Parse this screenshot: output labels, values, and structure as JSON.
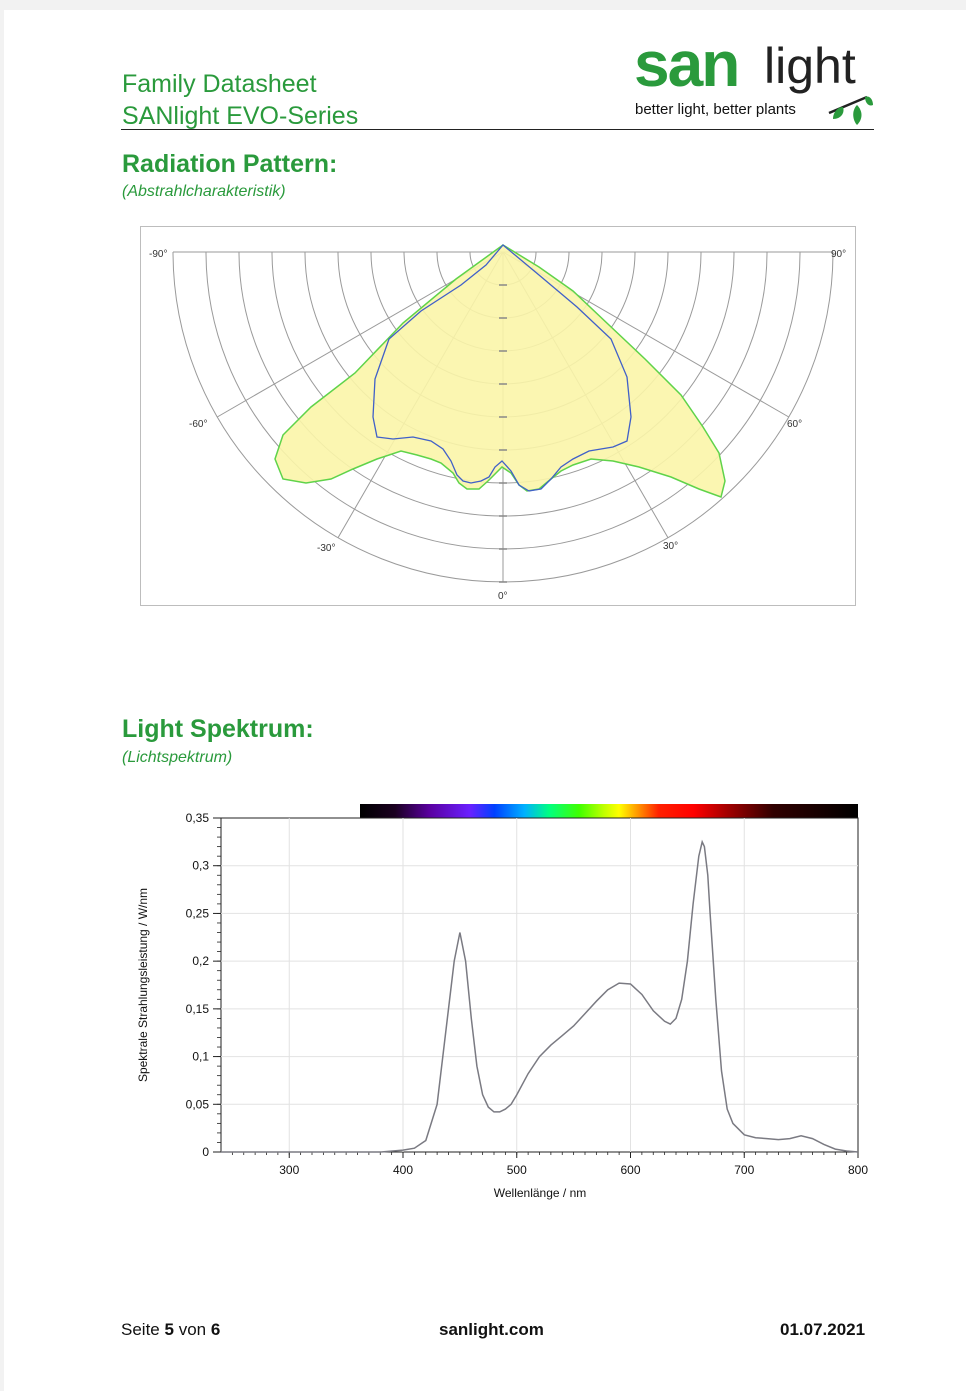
{
  "header": {
    "title_line1": "Family Datasheet",
    "title_line2": "SANlight EVO-Series",
    "logo_san": "san",
    "logo_light": "light",
    "logo_tagline": "better light, better plants"
  },
  "radiation": {
    "title": "Radiation Pattern:",
    "subtitle": "(Abstrahlcharakteristik)",
    "angle_labels": [
      "-90°",
      "90°",
      "-60°",
      "60°",
      "-30°",
      "30°",
      "0°"
    ],
    "colors": {
      "grid": "#9a9a9a",
      "fill": "#fbf5a8",
      "outline_green": "#5fd34a",
      "outline_blue": "#4060c8"
    }
  },
  "spectrum": {
    "title": "Light Spektrum:",
    "subtitle": "(Lichtspektrum)",
    "chart_data": {
      "type": "line",
      "xlabel": "Wellenlänge / nm",
      "ylabel": "Spektrale Strahlungsleistung / W/nm",
      "xlim": [
        240,
        800
      ],
      "ylim": [
        0,
        0.35
      ],
      "x_ticks": [
        "300",
        "400",
        "500",
        "600",
        "700",
        "800"
      ],
      "y_ticks": [
        "0",
        "0,05",
        "0,1",
        "0,15",
        "0,2",
        "0,25",
        "0,3",
        "0,35"
      ],
      "grid": true,
      "series": [
        {
          "x": [
            240,
            380,
            400,
            410,
            420,
            430,
            440,
            445,
            450,
            455,
            460,
            465,
            470,
            475,
            480,
            485,
            490,
            495,
            500,
            510,
            520,
            530,
            540,
            550,
            560,
            570,
            580,
            590,
            600,
            610,
            620,
            630,
            635,
            640,
            645,
            650,
            655,
            660,
            663,
            665,
            668,
            670,
            675,
            680,
            685,
            690,
            700,
            710,
            720,
            730,
            740,
            750,
            760,
            770,
            780,
            790,
            800
          ],
          "y": [
            0,
            0,
            0.002,
            0.004,
            0.012,
            0.05,
            0.15,
            0.2,
            0.23,
            0.2,
            0.14,
            0.09,
            0.06,
            0.047,
            0.042,
            0.042,
            0.045,
            0.05,
            0.06,
            0.082,
            0.1,
            0.112,
            0.122,
            0.132,
            0.145,
            0.158,
            0.17,
            0.177,
            0.176,
            0.165,
            0.148,
            0.137,
            0.134,
            0.14,
            0.16,
            0.2,
            0.26,
            0.31,
            0.325,
            0.32,
            0.29,
            0.25,
            0.16,
            0.085,
            0.045,
            0.03,
            0.018,
            0.015,
            0.014,
            0.013,
            0.014,
            0.017,
            0.014,
            0.008,
            0.003,
            0.001,
            0
          ]
        }
      ]
    }
  },
  "footer": {
    "page_prefix": "Seite",
    "page_current": "5",
    "page_mid": "von",
    "page_total": "6",
    "site": "sanlight.com",
    "date": "01.07.2021"
  }
}
